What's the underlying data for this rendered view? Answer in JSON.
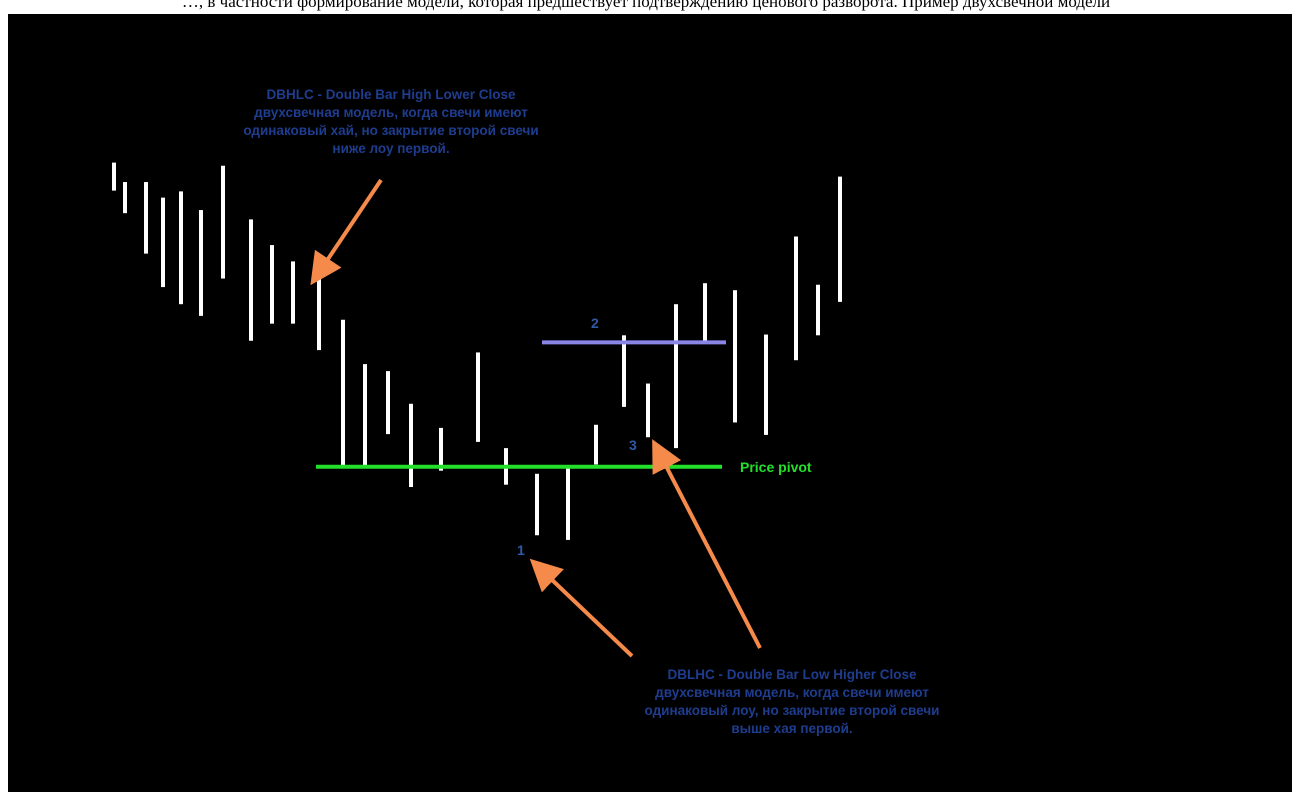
{
  "caption": "…, в частности формирование модели, которая предшествует подтверждению ценового разворота. Пример двухсвечной модели",
  "annotations": {
    "top_note": {
      "title": "DBHLC - Double Bar High Lower Close",
      "lines": [
        "двухсвечная модель, когда свечи имеют",
        "одинаковый хай, но закрытие второй свечи",
        "ниже лоу первой."
      ]
    },
    "bottom_note": {
      "title": "DBLHC - Double Bar Low Higher Close",
      "lines": [
        "двухсвечная модель, когда свечи имеют",
        "одинаковый лоу, но закрытие второй свечи",
        "выше хая первой."
      ]
    },
    "pivot_label": "Price pivot",
    "markers": [
      "1",
      "2",
      "3"
    ]
  },
  "colors": {
    "background": "#000000",
    "bars": "#ffffff",
    "pivot_line": "#22e02a",
    "level_line": "#8a86e6",
    "arrows": "#f58a4b",
    "note_text": "#1f3d8f",
    "pivot_label": "#22e02a",
    "marker_text": "#2f5aa8"
  },
  "chart_data": {
    "type": "bar",
    "title": "",
    "xlabel": "",
    "ylabel": "",
    "grid": false,
    "legend": "none",
    "ylim": [
      0,
      100
    ],
    "series": [
      {
        "high": [
          80.9,
          78.4,
          78.4,
          76.4,
          77.2,
          74.8,
          80.5,
          73.6,
          70.3,
          68.2,
          68.2,
          60.7,
          55.0,
          54.1,
          49.9,
          46.8,
          56.5,
          44.2,
          40.9,
          41.9,
          47.2,
          58.7,
          52.5,
          62.7,
          65.4,
          64.5,
          58.8,
          71.4,
          65.2,
          79.1
        ],
        "low": [
          77.3,
          74.4,
          69.2,
          64.9,
          62.7,
          61.2,
          66.0,
          58.0,
          60.2,
          60.2,
          56.8,
          41.6,
          41.6,
          46.0,
          39.2,
          41.3,
          45.0,
          39.5,
          33.0,
          32.4,
          42.1,
          49.5,
          45.6,
          44.2,
          57.6,
          47.5,
          45.9,
          55.5,
          58.7,
          63.0
        ]
      }
    ],
    "reference_lines": [
      {
        "name": "Price pivot",
        "value": 41.8
      },
      {
        "name": "2",
        "value": 57.8
      }
    ]
  }
}
